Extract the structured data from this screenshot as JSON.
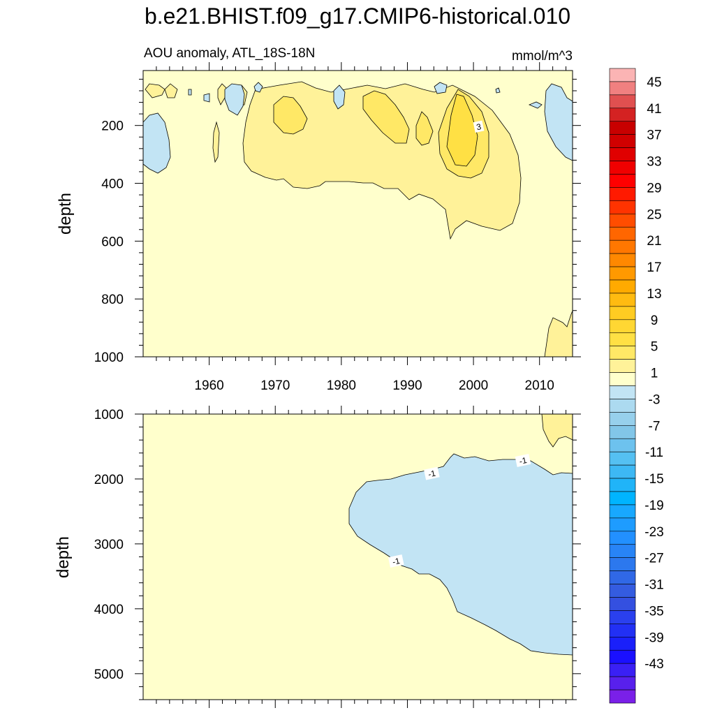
{
  "title": "b.e21.BHIST.f09_g17.CMIP6-historical.010",
  "chart_data": [
    {
      "type": "contour",
      "panel": "upper",
      "subtitle_left": "AOU anomaly, ATL_18S-18N",
      "subtitle_right": "mmol/m^3",
      "xlabel": "",
      "ylabel": "depth",
      "xlim": [
        1950,
        2015
      ],
      "ylim": [
        1000,
        10
      ],
      "xticks": [
        1960,
        1970,
        1980,
        1990,
        2000,
        2010
      ],
      "xtick_labels": [
        "1960",
        "1970",
        "1980",
        "1990",
        "2000",
        "2010"
      ],
      "yticks": [
        200,
        400,
        600,
        800,
        1000
      ],
      "ytick_labels": [
        "200",
        "400",
        "600",
        "800",
        "1000"
      ],
      "background_level": "0 to 2",
      "contour_labels": [
        {
          "x": 2000.8,
          "y": 205,
          "text": "3"
        }
      ]
    },
    {
      "type": "contour",
      "panel": "lower",
      "xlabel": "",
      "ylabel": "depth",
      "xlim": [
        1950,
        2015
      ],
      "ylim": [
        5400,
        1000
      ],
      "xticks": [
        1960,
        1970,
        1980,
        1990,
        2000,
        2010
      ],
      "yticks": [
        1000,
        2000,
        3000,
        4000,
        5000
      ],
      "ytick_labels": [
        "1000",
        "2000",
        "3000",
        "4000",
        "5000"
      ],
      "background_level": "0 to 2",
      "contour_labels": [
        {
          "x": 1993.7,
          "y": 1920,
          "text": "-1"
        },
        {
          "x": 2007.5,
          "y": 1720,
          "text": "-1"
        },
        {
          "x": 1988.3,
          "y": 3270,
          "text": "-1"
        }
      ]
    }
  ],
  "colorbar": {
    "labels": [
      "45",
      "41",
      "37",
      "33",
      "29",
      "25",
      "21",
      "17",
      "13",
      "9",
      "5",
      "1",
      "-3",
      "-7",
      "-11",
      "-15",
      "-19",
      "-23",
      "-27",
      "-31",
      "-35",
      "-39",
      "-43"
    ],
    "colors": [
      "#fbb4b4",
      "#f08080",
      "#e05050",
      "#d42222",
      "#c80000",
      "#d00000",
      "#e00000",
      "#f00000",
      "#ff0000",
      "#ff1a00",
      "#ff3300",
      "#ff4d00",
      "#ff6600",
      "#ff7700",
      "#ff8800",
      "#ff9900",
      "#ffaa00",
      "#ffbb11",
      "#ffcc22",
      "#ffd733",
      "#ffe044",
      "#ffe866",
      "#fff299",
      "#ffffcc",
      "#c2e4f4",
      "#acdaf0",
      "#97d0ec",
      "#82c6e8",
      "#6dc2ee",
      "#55c0f2",
      "#3db8f4",
      "#20b4f8",
      "#00b4ff",
      "#18a8ff",
      "#1e9cff",
      "#2290ff",
      "#2884f6",
      "#2c78ee",
      "#3068e6",
      "#345ce0",
      "#3450e0",
      "#2a40ee",
      "#2230f4",
      "#1a20fa",
      "#1a10ff",
      "#3a20f4",
      "#5820ec",
      "#7a20e8"
    ]
  }
}
